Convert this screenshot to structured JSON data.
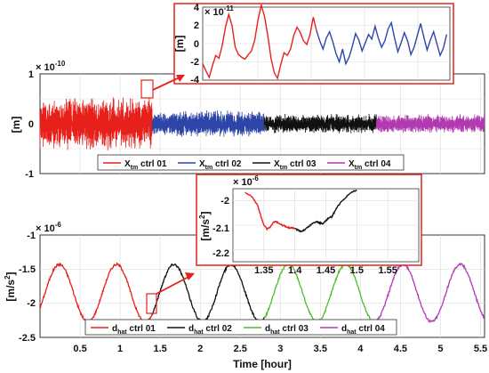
{
  "colors": {
    "ctrl01": "#e8201c",
    "ctrl02": "#2e45a8",
    "ctrl03": "#111111",
    "ctrl04": "#b23ab0",
    "dctrl03": "#4fbe2a",
    "box": "#e8201c"
  },
  "chart_data": [
    {
      "id": "top_main",
      "type": "line",
      "ylabel": "[m]",
      "y_exponent": "× 10",
      "y_exponent_power": "-10",
      "ylim": [
        -1,
        1
      ],
      "xlim": [
        0,
        5.55
      ],
      "yticks": [
        "1",
        "0",
        "-1"
      ],
      "grid": true,
      "series": [
        {
          "name_main": "X",
          "name_sub": "tm",
          "name_suffix": " ctrl 01",
          "color_key": "ctrl01",
          "x_range": [
            0,
            1.4
          ],
          "amplitude": 0.55
        },
        {
          "name_main": "X",
          "name_sub": "tm",
          "name_suffix": " ctrl 02",
          "color_key": "ctrl02",
          "x_range": [
            1.4,
            2.8
          ],
          "amplitude": 0.28
        },
        {
          "name_main": "X",
          "name_sub": "tm",
          "name_suffix": " ctrl 03",
          "color_key": "ctrl03",
          "x_range": [
            2.8,
            4.2
          ],
          "amplitude": 0.2
        },
        {
          "name_main": "X",
          "name_sub": "tm",
          "name_suffix": " ctrl 04",
          "color_key": "ctrl04",
          "x_range": [
            4.2,
            5.55
          ],
          "amplitude": 0.2
        }
      ],
      "legend_position": "bottom"
    },
    {
      "id": "top_inset",
      "type": "line",
      "ylabel": "[m]",
      "y_exponent": "× 10",
      "y_exponent_power": "-11",
      "ylim": [
        -4,
        4
      ],
      "yticks": [
        "4",
        "2",
        "0",
        "-2",
        "-4"
      ],
      "grid": true,
      "series": [
        {
          "color_key": "ctrl01",
          "values": [
            -2.2,
            -3,
            -3.7,
            -2.4,
            -1.3,
            -1.6,
            -0.2,
            1.8,
            3.2,
            2.0,
            -0.4,
            -1.2,
            -1.5,
            -1.7,
            -1.2,
            -0.8,
            0.4,
            2.6,
            4.2,
            3.0,
            0.9,
            -1.6,
            -3.2,
            -3.8,
            -2.3,
            -1.0,
            -1.3,
            -0.6,
            0.9,
            1.8,
            1.2,
            0.3,
            -0.1,
            1.0,
            2.9,
            1.4
          ]
        },
        {
          "color_key": "ctrl02",
          "values": [
            1.4,
            0.3,
            -0.6,
            0.6,
            1.3,
            0.2,
            -1.1,
            -2.0,
            -0.6,
            -2.2,
            -1.5,
            -0.3,
            1.1,
            0.4,
            -0.8,
            0.1,
            1.0,
            0.5,
            1.9,
            0.6,
            -0.4,
            0.3,
            1.6,
            2.3,
            0.6,
            -0.9,
            0.1,
            1.2,
            0.3,
            -1.2,
            -0.4,
            0.9,
            2.2,
            0.7,
            -0.7,
            0.4,
            1.3,
            0.0,
            -1.3,
            -0.5,
            1.0
          ]
        }
      ]
    },
    {
      "id": "bottom_main",
      "type": "line",
      "ylabel_main": "[m/s",
      "ylabel_sup": "2",
      "ylabel_end": "]",
      "y_exponent": "× 10",
      "y_exponent_power": "-6",
      "ylim": [
        -2.5,
        -1
      ],
      "xlim": [
        0,
        5.55
      ],
      "yticks": [
        "-1",
        "-1.5",
        "-2",
        "-2.5"
      ],
      "xticks": [
        "0.5",
        "1",
        "1.5",
        "2",
        "2.5",
        "3",
        "3.5",
        "4",
        "4.5",
        "5",
        "5.5"
      ],
      "xlabel": "Time [hour]",
      "grid": true,
      "series": [
        {
          "name_main": "d",
          "name_sub": "hat",
          "name_suffix": " ctrl 01",
          "color_key": "ctrl01",
          "x_range": [
            0,
            1.4
          ]
        },
        {
          "name_main": "d",
          "name_sub": "hat",
          "name_suffix": " ctrl 02",
          "color_key": "ctrl03",
          "x_range": [
            1.4,
            2.8
          ]
        },
        {
          "name_main": "d",
          "name_sub": "hat",
          "name_suffix": " ctrl 03",
          "color_key": "dctrl03",
          "x_range": [
            2.8,
            4.2
          ]
        },
        {
          "name_main": "d",
          "name_sub": "hat",
          "name_suffix": " ctrl 04",
          "color_key": "ctrl04",
          "x_range": [
            4.2,
            5.55
          ]
        }
      ],
      "wave": {
        "mean": -1.85,
        "amplitude": 0.42,
        "period_hours": 0.715,
        "phase_hours": 0.0
      },
      "legend_position": "bottom"
    },
    {
      "id": "bottom_inset",
      "type": "line",
      "ylabel_main": "[m/s",
      "ylabel_sup": "2",
      "ylabel_end": "]",
      "y_exponent": "× 10",
      "y_exponent_power": "-6",
      "ylim": [
        -2.25,
        -1.95
      ],
      "xlim": [
        1.3,
        1.6
      ],
      "yticks": [
        "-2",
        "-2.1",
        "-2.2"
      ],
      "xticks": [
        "1.35",
        "1.4",
        "1.45",
        "1.5",
        "1.55"
      ],
      "grid": true,
      "series": [
        {
          "color_key": "ctrl01",
          "x": [
            1.32,
            1.33,
            1.34,
            1.345,
            1.35,
            1.355,
            1.36,
            1.365,
            1.37,
            1.375,
            1.38,
            1.385,
            1.39,
            1.395,
            1.4
          ],
          "values": [
            -1.965,
            -1.98,
            -2.02,
            -2.06,
            -2.1,
            -2.115,
            -2.11,
            -2.09,
            -2.085,
            -2.095,
            -2.1,
            -2.105,
            -2.11,
            -2.11,
            -2.115
          ]
        },
        {
          "color_key": "ctrl03",
          "x": [
            1.4,
            1.405,
            1.41,
            1.415,
            1.42,
            1.425,
            1.43,
            1.435,
            1.44,
            1.445,
            1.45,
            1.455,
            1.46,
            1.465,
            1.47,
            1.48,
            1.49,
            1.5
          ],
          "values": [
            -2.115,
            -2.12,
            -2.125,
            -2.12,
            -2.11,
            -2.1,
            -2.09,
            -2.085,
            -2.09,
            -2.095,
            -2.08,
            -2.07,
            -2.065,
            -2.04,
            -2.02,
            -1.99,
            -1.965,
            -1.955
          ]
        }
      ]
    }
  ]
}
